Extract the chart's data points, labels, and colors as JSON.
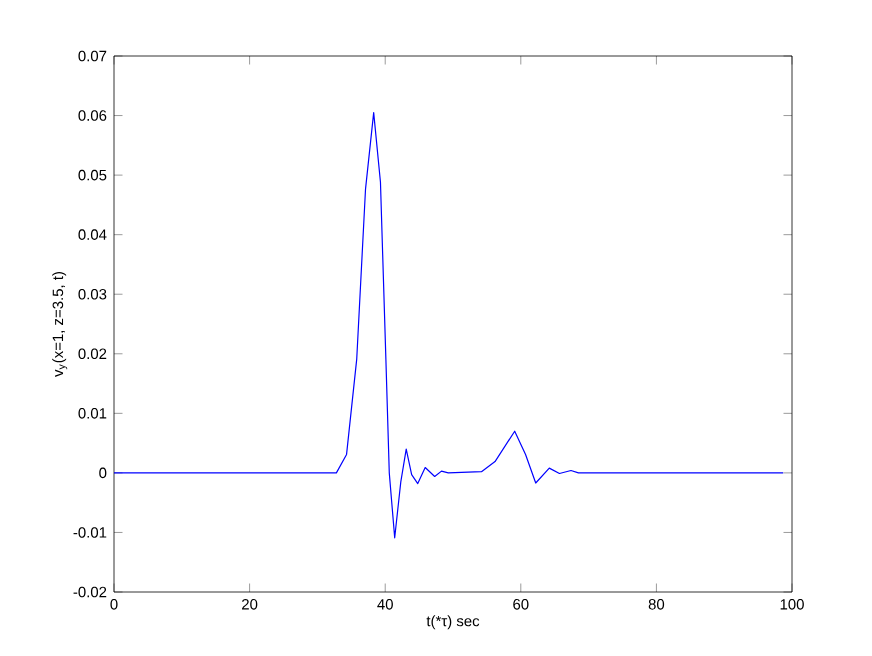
{
  "chart_data": {
    "type": "line",
    "xlabel": "t(*τ) sec",
    "ylabel": "v$_{y}$(x=1, z=3.5, t)",
    "xlim": [
      0,
      100
    ],
    "ylim": [
      -0.02,
      0.07
    ],
    "xticks": [
      0,
      20,
      40,
      60,
      80,
      100
    ],
    "yticks": [
      {
        "value": -0.02,
        "label": "-0.02"
      },
      {
        "value": -0.01,
        "label": "-0.01"
      },
      0,
      0.01,
      0.02,
      0.03,
      0.04,
      0.05,
      0.06,
      0.07
    ],
    "series": [
      {
        "color": "#0000ff",
        "x": [
          0,
          10,
          20,
          30,
          32.8,
          34.3,
          35.8,
          37.1,
          38.3,
          39.3,
          40.1,
          40.6,
          41.4,
          42.3,
          43.1,
          43.9,
          44.8,
          45.9,
          47.3,
          48.3,
          49.3,
          54.2,
          56.2,
          59.1,
          60.7,
          62.2,
          64.2,
          65.7,
          67.4,
          68.5,
          70,
          80,
          90,
          98.7
        ],
        "values": [
          0,
          0,
          0,
          0,
          0,
          0.0031,
          0.0191,
          0.0477,
          0.0605,
          0.0488,
          0.0191,
          0,
          -0.0109,
          -0.0015,
          0.004,
          -0.0003,
          -0.0018,
          0.0009,
          -0.0006,
          0.0003,
          0,
          0.0002,
          0.0019,
          0.007,
          0.0031,
          -0.0017,
          0.0008,
          -0.0001,
          0.0004,
          0,
          0,
          0,
          0,
          0
        ]
      }
    ]
  }
}
